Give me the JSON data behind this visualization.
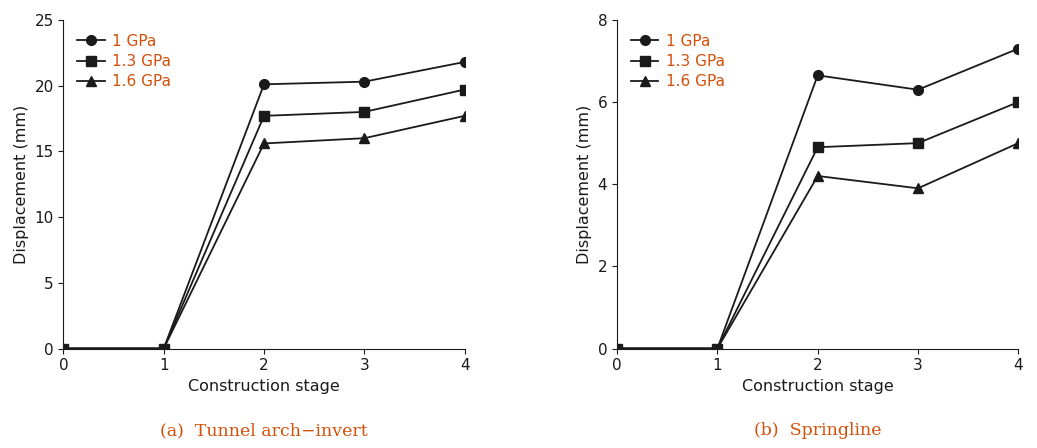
{
  "left_plot": {
    "title": "(a)  Tunnel arch−invert",
    "ylabel": "Displacement (mm)",
    "xlabel": "Construction stage",
    "xlim": [
      0,
      4
    ],
    "ylim": [
      0,
      25
    ],
    "yticks": [
      0,
      5,
      10,
      15,
      20,
      25
    ],
    "xticks": [
      0,
      1,
      2,
      3,
      4
    ],
    "series": [
      {
        "label": "1 GPa",
        "x": [
          0,
          1,
          2,
          3,
          4
        ],
        "y": [
          0,
          0,
          20.1,
          20.3,
          21.8
        ],
        "marker": "o"
      },
      {
        "label": "1.3 GPa",
        "x": [
          0,
          1,
          2,
          3,
          4
        ],
        "y": [
          0,
          0,
          17.7,
          18.0,
          19.7
        ],
        "marker": "s"
      },
      {
        "label": "1.6 GPa",
        "x": [
          0,
          1,
          2,
          3,
          4
        ],
        "y": [
          0,
          0,
          15.6,
          16.0,
          17.7
        ],
        "marker": "^"
      }
    ]
  },
  "right_plot": {
    "title": "(b)  Springline",
    "ylabel": "Displacement (mm)",
    "xlabel": "Construction stage",
    "xlim": [
      0,
      4
    ],
    "ylim": [
      0,
      8
    ],
    "yticks": [
      0,
      2,
      4,
      6,
      8
    ],
    "xticks": [
      0,
      1,
      2,
      3,
      4
    ],
    "series": [
      {
        "label": "1 GPa",
        "x": [
          0,
          1,
          2,
          3,
          4
        ],
        "y": [
          0,
          0,
          6.65,
          6.3,
          7.3
        ],
        "marker": "o"
      },
      {
        "label": "1.3 GPa",
        "x": [
          0,
          1,
          2,
          3,
          4
        ],
        "y": [
          0,
          0,
          4.9,
          5.0,
          6.0
        ],
        "marker": "s"
      },
      {
        "label": "1.6 GPa",
        "x": [
          0,
          1,
          2,
          3,
          4
        ],
        "y": [
          0,
          0,
          4.2,
          3.9,
          5.0
        ],
        "marker": "^"
      }
    ]
  },
  "line_color": "#1a1a1a",
  "legend_text_color": "#d4500a",
  "caption_color": "#d4500a",
  "marker_size": 7,
  "line_width": 1.3,
  "caption_fontsize": 12.5,
  "label_fontsize": 11.5,
  "tick_fontsize": 11,
  "legend_fontsize": 11
}
